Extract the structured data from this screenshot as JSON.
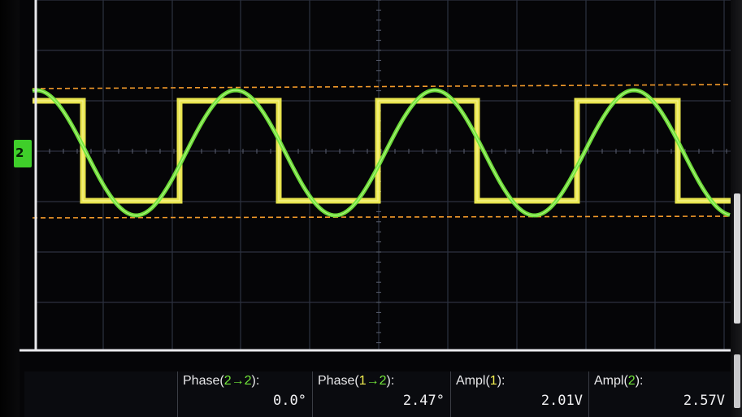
{
  "screen": {
    "background": "#050507",
    "grid_color": "#2d3240",
    "ch1_color": "#f4f051",
    "ch2_color": "#72e63a",
    "cursor_color": "#f39a2a"
  },
  "channel_marker": {
    "label": "2",
    "icon": "channel-2-ground-marker-icon"
  },
  "measurements": [
    {
      "label_prefix": "Phase(",
      "label_a": "2",
      "label_arrow": "→",
      "label_b": "2",
      "label_suffix": "):",
      "value": "0.0°"
    },
    {
      "label_prefix": "Phase(",
      "label_a": "1",
      "label_arrow": "→",
      "label_b": "2",
      "label_suffix": "):",
      "value": "2.47°"
    },
    {
      "label_prefix": "Ampl(",
      "label_a": "1",
      "label_suffix": "):",
      "value": "2.01V"
    },
    {
      "label_prefix": "Ampl(",
      "label_a": "2",
      "label_suffix": "):",
      "value": "2.57V"
    }
  ]
}
